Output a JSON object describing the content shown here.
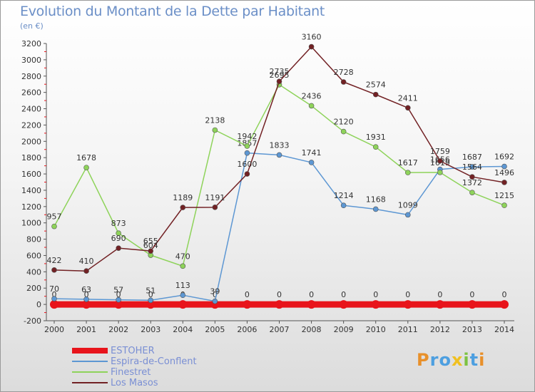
{
  "title": "Evolution du Montant de la Dette par Habitant",
  "unit": "(en €)",
  "logo": {
    "text": "Proxiti",
    "letters": [
      {
        "ch": "P",
        "color": "#e8902a"
      },
      {
        "ch": "r",
        "color": "#4d9fe0"
      },
      {
        "ch": "o",
        "color": "#4d9fe0"
      },
      {
        "ch": "x",
        "color": "#f0c020"
      },
      {
        "ch": "i",
        "color": "#7dc242"
      },
      {
        "ch": "t",
        "color": "#4d9fe0"
      },
      {
        "ch": "i",
        "color": "#e8902a"
      }
    ]
  },
  "chart_data": {
    "type": "line",
    "x": [
      "2000",
      "2001",
      "2002",
      "2003",
      "2004",
      "2005",
      "2006",
      "2007",
      "2008",
      "2009",
      "2010",
      "2011",
      "2012",
      "2013",
      "2014"
    ],
    "ylim": [
      -200,
      3200
    ],
    "yticks": [
      -200,
      0,
      200,
      400,
      600,
      800,
      1000,
      1200,
      1400,
      1600,
      1800,
      2000,
      2200,
      2400,
      2600,
      2800,
      3000,
      3200
    ],
    "grid": false,
    "legend_position": "bottom-left",
    "series": [
      {
        "name": "ESTOHER",
        "color": "#e8141b",
        "stroke": 9,
        "values": [
          0,
          0,
          0,
          0,
          0,
          0,
          0,
          0,
          0,
          0,
          0,
          0,
          0,
          0,
          0
        ],
        "labels": [
          "0",
          "0",
          "0",
          "0",
          "0",
          "0",
          "0",
          "0",
          "0",
          "0",
          "0",
          "0",
          "0",
          "0",
          "0"
        ]
      },
      {
        "name": "Espira-de-Conflent",
        "color": "#5d97d3",
        "stroke": 1.5,
        "values": [
          70,
          63,
          57,
          51,
          113,
          39,
          1857,
          1833,
          1741,
          1214,
          1168,
          1099,
          1656,
          1687,
          1692
        ],
        "labels": [
          "70",
          "63",
          "57",
          "51",
          "113",
          "39",
          "1857",
          "1833",
          "1741",
          "1214",
          "1168",
          "1099",
          "1656",
          "1687",
          "1692"
        ]
      },
      {
        "name": "Finestret",
        "color": "#8ed35a",
        "stroke": 1.5,
        "values": [
          957,
          1678,
          873,
          604,
          470,
          2138,
          1942,
          2695,
          2436,
          2120,
          1931,
          1617,
          1619,
          1372,
          1215
        ],
        "labels": [
          "957",
          "1678",
          "873",
          "604",
          "470",
          "2138",
          "1942",
          "2695",
          "2436",
          "2120",
          "1931",
          "1617",
          "1619",
          "1372",
          "1215"
        ]
      },
      {
        "name": "Los Masos",
        "color": "#722124",
        "stroke": 1.5,
        "values": [
          422,
          410,
          690,
          655,
          1189,
          1191,
          1600,
          2735,
          3160,
          2728,
          2574,
          2411,
          1759,
          1564,
          1496
        ],
        "labels": [
          "422",
          "410",
          "690",
          "655",
          "1189",
          "1191",
          "1600",
          "2735",
          "3160",
          "2728",
          "2574",
          "2411",
          "1759",
          "1564",
          "1496"
        ]
      }
    ]
  }
}
